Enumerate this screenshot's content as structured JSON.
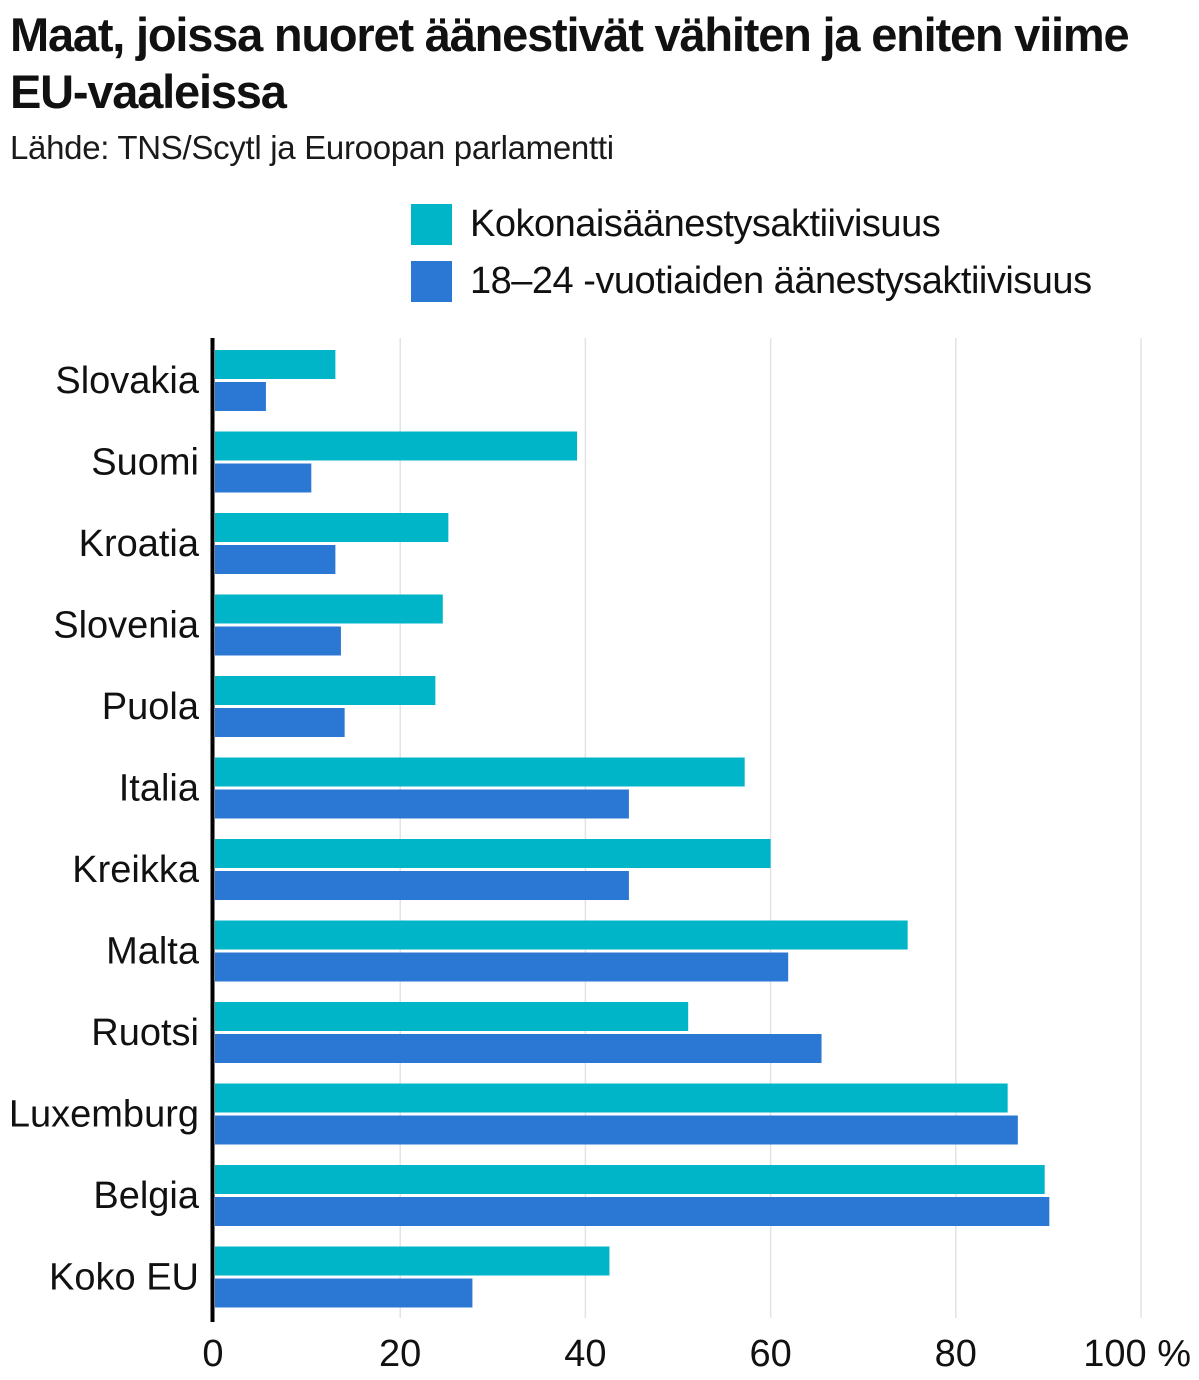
{
  "chart_data": {
    "type": "bar",
    "orientation": "horizontal",
    "title": "Maat, joissa nuoret äänestivät vähiten ja eniten viime EU-vaaleissa",
    "subtitle": "Lähde: TNS/Scytl ja Euroopan parlamentti",
    "categories": [
      "Slovakia",
      "Suomi",
      "Kroatia",
      "Slovenia",
      "Puola",
      "Italia",
      "Kreikka",
      "Malta",
      "Ruotsi",
      "Luxemburg",
      "Belgia",
      "Koko EU"
    ],
    "series": [
      {
        "name": "Kokonaisäänestysaktiivisuus",
        "color": "#00b5c8",
        "values": [
          13.0,
          39.1,
          25.2,
          24.6,
          23.8,
          57.2,
          60.0,
          74.8,
          51.1,
          85.6,
          89.6,
          42.6
        ]
      },
      {
        "name": "18–24 -vuotiaiden äänestysaktiivisuus",
        "color": "#2b78d4",
        "values": [
          5.5,
          10.4,
          13.0,
          13.6,
          14.0,
          44.7,
          44.7,
          61.9,
          65.5,
          86.7,
          90.1,
          27.8
        ]
      }
    ],
    "xlim": [
      0,
      100
    ],
    "xticks": [
      0,
      20,
      40,
      60,
      80,
      100
    ],
    "xtick_labels": [
      "0",
      "20",
      "40",
      "60",
      "80",
      "100 %"
    ],
    "xlabel": "",
    "ylabel": "",
    "grid": true,
    "legend": "top-right"
  }
}
